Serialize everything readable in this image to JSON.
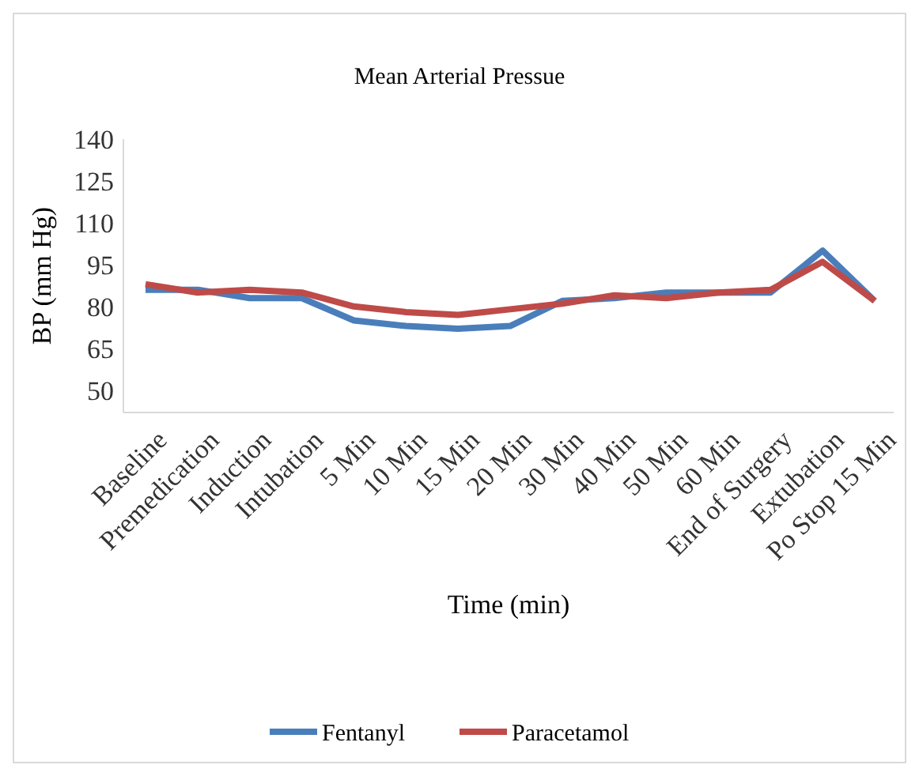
{
  "chart_data": {
    "type": "line",
    "title": "Mean Arterial Pressue",
    "xlabel": "Time (min)",
    "ylabel": "BP (mm Hg)",
    "categories": [
      "Baseline",
      "Premedication",
      "Induction",
      "Intubation",
      "5 Min",
      "10 Min",
      "15 Min",
      "20 Min",
      "30 Min",
      "40 Min",
      "50 Min",
      "60 Min",
      "End of Surgery",
      "Extubation",
      "Po Stop 15 Min"
    ],
    "series": [
      {
        "name": "Fentanyl",
        "color": "#4a7ebb",
        "values": [
          86,
          86,
          83,
          83,
          75,
          73,
          72,
          73,
          82,
          83,
          85,
          85,
          85,
          100,
          82
        ]
      },
      {
        "name": "Paracetamol",
        "color": "#be4b48",
        "values": [
          88,
          85,
          86,
          85,
          80,
          78,
          77,
          79,
          81,
          84,
          83,
          85,
          86,
          96,
          82
        ]
      }
    ],
    "ylim": [
      42,
      140
    ],
    "yticks": [
      50,
      65,
      80,
      95,
      110,
      125,
      140
    ],
    "grid": false,
    "legend": "bottom",
    "marker": "none",
    "line_style": "solid"
  }
}
